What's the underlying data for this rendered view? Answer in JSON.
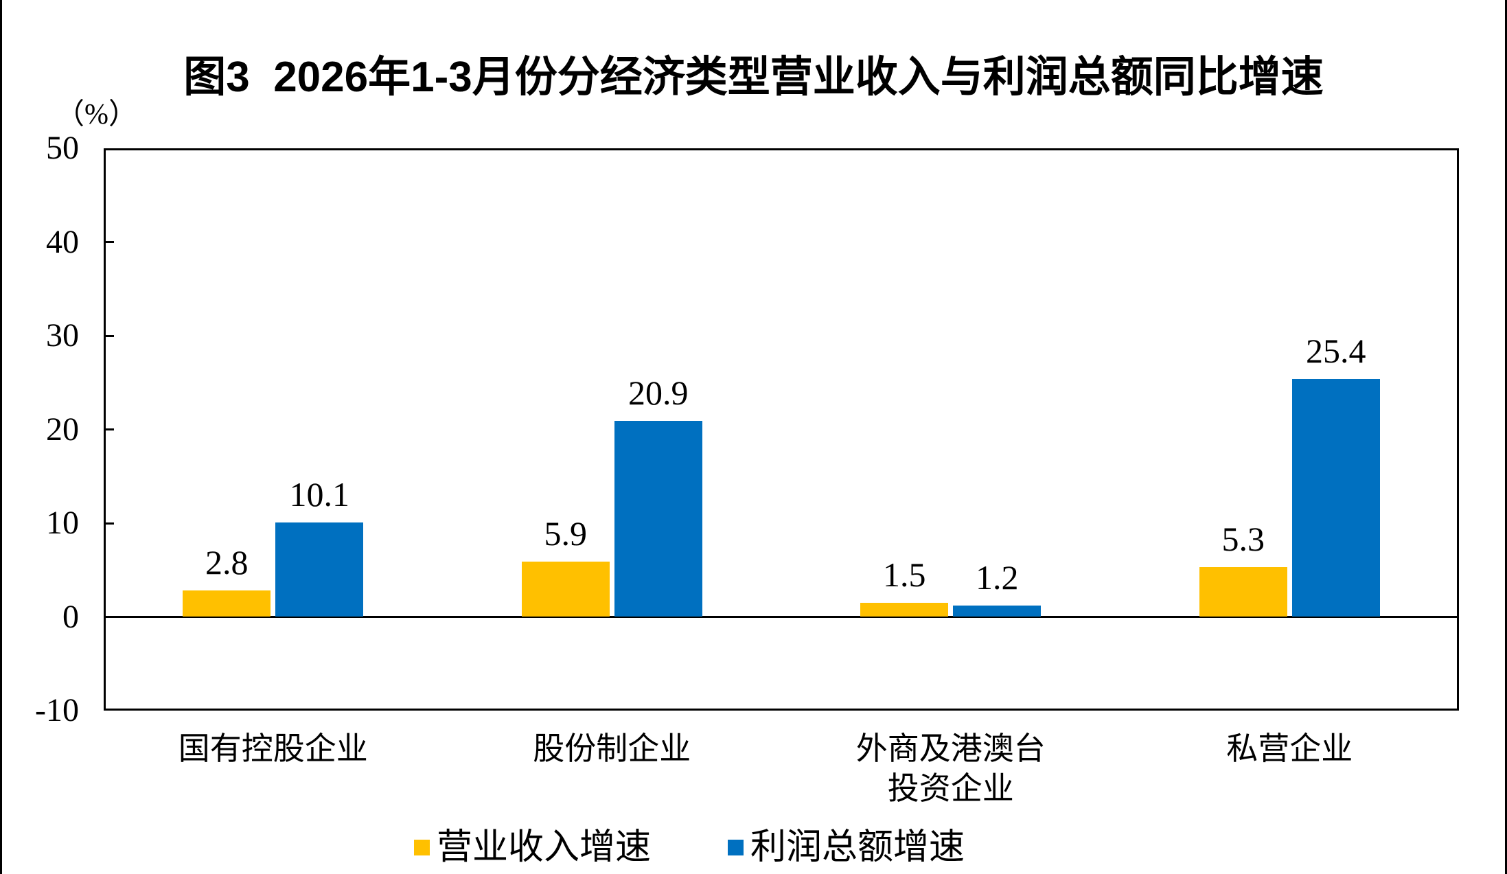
{
  "page": {
    "title": "图3  2026年1-3月份分经济类型营业收入与利润总额同比增速"
  },
  "y_axis": {
    "unit_label": "（%）",
    "ticks": [
      50,
      40,
      30,
      20,
      10,
      0,
      -10
    ],
    "min": -10,
    "max": 50,
    "tick_step": 10
  },
  "chart_data": {
    "type": "bar",
    "title": "图3 2026年1-3月份分经济类型营业收入与利润总额同比增速",
    "categories": [
      "国有控股企业",
      "股份制企业",
      "外商及港澳台\n投资企业",
      "私营企业"
    ],
    "series": [
      {
        "name": "营业收入增速",
        "color": "#FFC000",
        "values": [
          2.8,
          5.9,
          1.5,
          5.3
        ]
      },
      {
        "name": "利润总额增速",
        "color": "#0070C0",
        "values": [
          10.1,
          20.9,
          1.2,
          25.4
        ]
      }
    ],
    "ylabel": "（%）",
    "ylim": [
      -10,
      50
    ],
    "grid": false,
    "legend_position": "bottom",
    "value_labels_shown": true
  },
  "legend": {
    "items": [
      {
        "label": "营业收入增速",
        "color": "#FFC000"
      },
      {
        "label": "利润总额增速",
        "color": "#0070C0"
      }
    ]
  }
}
